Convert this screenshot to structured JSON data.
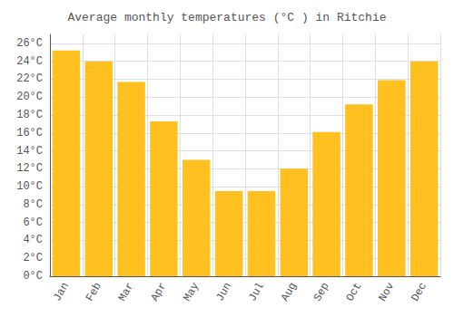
{
  "chart_data": {
    "type": "bar",
    "title": "Average monthly temperatures (°C ) in Ritchie",
    "categories": [
      "Jan",
      "Feb",
      "Mar",
      "Apr",
      "May",
      "Jun",
      "Jul",
      "Aug",
      "Sep",
      "Oct",
      "Nov",
      "Dec"
    ],
    "values": [
      25.2,
      24.0,
      21.7,
      17.3,
      13.0,
      9.5,
      9.5,
      12.0,
      16.1,
      19.2,
      21.9,
      24.0
    ],
    "color": "#FFC020",
    "ylim": [
      0,
      27
    ],
    "yticks": [
      {
        "value": 0,
        "label": "0°C"
      },
      {
        "value": 2,
        "label": "2°C"
      },
      {
        "value": 4,
        "label": "4°C"
      },
      {
        "value": 6,
        "label": "6°C"
      },
      {
        "value": 8,
        "label": "8°C"
      },
      {
        "value": 10,
        "label": "10°C"
      },
      {
        "value": 12,
        "label": "12°C"
      },
      {
        "value": 14,
        "label": "14°C"
      },
      {
        "value": 16,
        "label": "16°C"
      },
      {
        "value": 18,
        "label": "18°C"
      },
      {
        "value": 20,
        "label": "20°C"
      },
      {
        "value": 22,
        "label": "22°C"
      },
      {
        "value": 24,
        "label": "24°C"
      },
      {
        "value": 26,
        "label": "26°C"
      }
    ],
    "grid": true
  }
}
